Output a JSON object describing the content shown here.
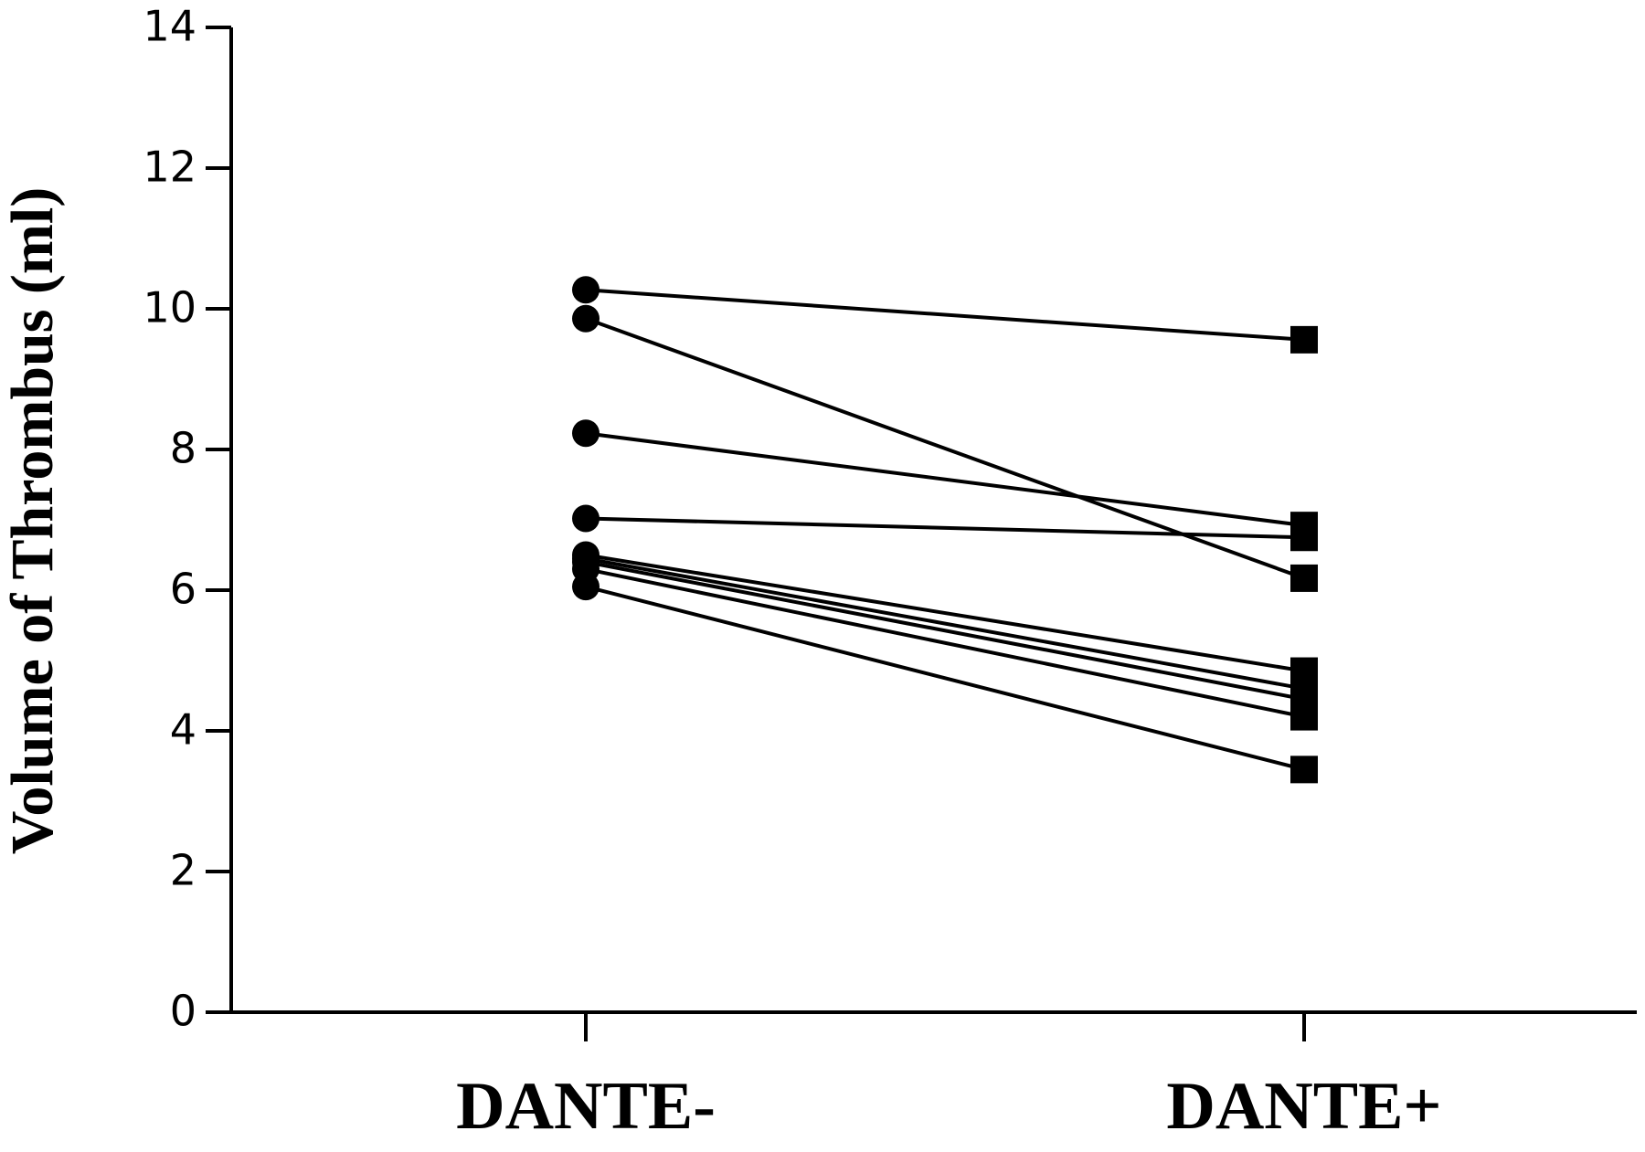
{
  "chart_data": {
    "type": "line",
    "y_label": "Volume of Thrombus (ml)",
    "categories": [
      "DANTE-",
      "DANTE+"
    ],
    "markers": [
      "circle",
      "square"
    ],
    "series": [
      {
        "color": "#000000",
        "values": [
          10.27,
          9.56
        ]
      },
      {
        "color": "#000000",
        "values": [
          9.86,
          6.17
        ]
      },
      {
        "color": "#000000",
        "values": [
          8.23,
          6.92
        ]
      },
      {
        "color": "#000000",
        "values": [
          7.02,
          6.75
        ]
      },
      {
        "color": "#000000",
        "values": [
          6.5,
          4.85
        ]
      },
      {
        "color": "#000000",
        "values": [
          6.45,
          4.6
        ]
      },
      {
        "color": "#000000",
        "values": [
          6.4,
          4.45
        ]
      },
      {
        "color": "#000000",
        "values": [
          6.3,
          4.2
        ]
      },
      {
        "color": "#000000",
        "values": [
          6.05,
          3.45
        ]
      }
    ],
    "ylim": [
      0,
      14
    ],
    "yticks": [
      0,
      2,
      4,
      6,
      8,
      10,
      12,
      14
    ],
    "grid": false
  }
}
